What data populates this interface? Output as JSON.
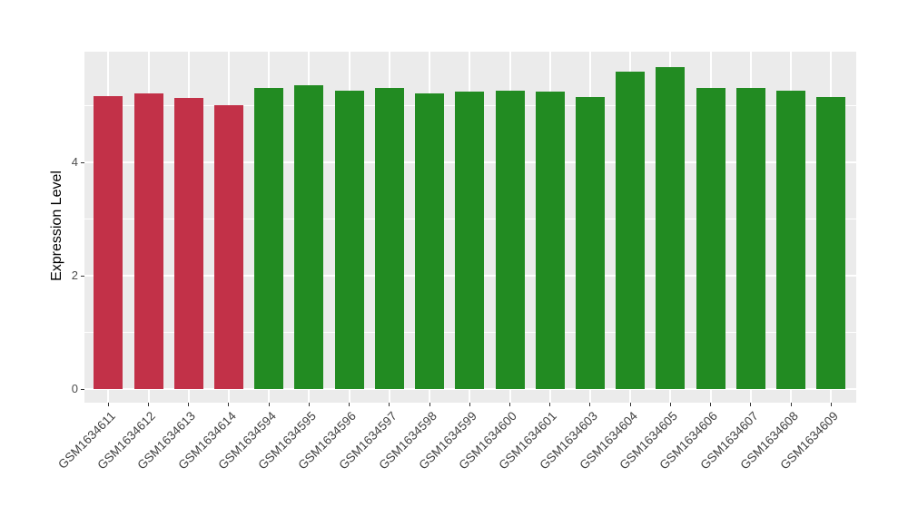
{
  "chart_data": {
    "type": "bar",
    "title": "",
    "xlabel": "",
    "ylabel": "Expression Level",
    "categories": [
      "GSM1634611",
      "GSM1634612",
      "GSM1634613",
      "GSM1634614",
      "GSM1634594",
      "GSM1634595",
      "GSM1634596",
      "GSM1634597",
      "GSM1634598",
      "GSM1634599",
      "GSM1634600",
      "GSM1634601",
      "GSM1634603",
      "GSM1634604",
      "GSM1634605",
      "GSM1634606",
      "GSM1634607",
      "GSM1634608",
      "GSM1634609"
    ],
    "values": [
      5.17,
      5.21,
      5.14,
      5.01,
      5.32,
      5.36,
      5.26,
      5.32,
      5.22,
      5.25,
      5.26,
      5.25,
      5.15,
      5.6,
      5.68,
      5.31,
      5.31,
      5.26,
      5.15
    ],
    "bar_colors": [
      "#C23148",
      "#C23148",
      "#C23148",
      "#C23148",
      "#228B22",
      "#228B22",
      "#228B22",
      "#228B22",
      "#228B22",
      "#228B22",
      "#228B22",
      "#228B22",
      "#228B22",
      "#228B22",
      "#228B22",
      "#228B22",
      "#228B22",
      "#228B22",
      "#228B22"
    ],
    "yticks": [
      0,
      2,
      4
    ],
    "ytick_labels": [
      "0",
      "2",
      "4"
    ],
    "ylim": [
      -0.25,
      5.95
    ],
    "grid": {
      "major_y": [
        0,
        2,
        4
      ],
      "minor_y": [
        1,
        3,
        5
      ],
      "vertical_at_each_category": true
    },
    "legend": "none",
    "colors": {
      "panel_background": "#EBEBEB",
      "gridline": "#FFFFFF",
      "bar_red": "#C23148",
      "bar_green": "#228B22",
      "tick_label_text": "#4D4D4D",
      "axis_title_text": "#000000",
      "figure_background": "#FFFFFF"
    }
  }
}
